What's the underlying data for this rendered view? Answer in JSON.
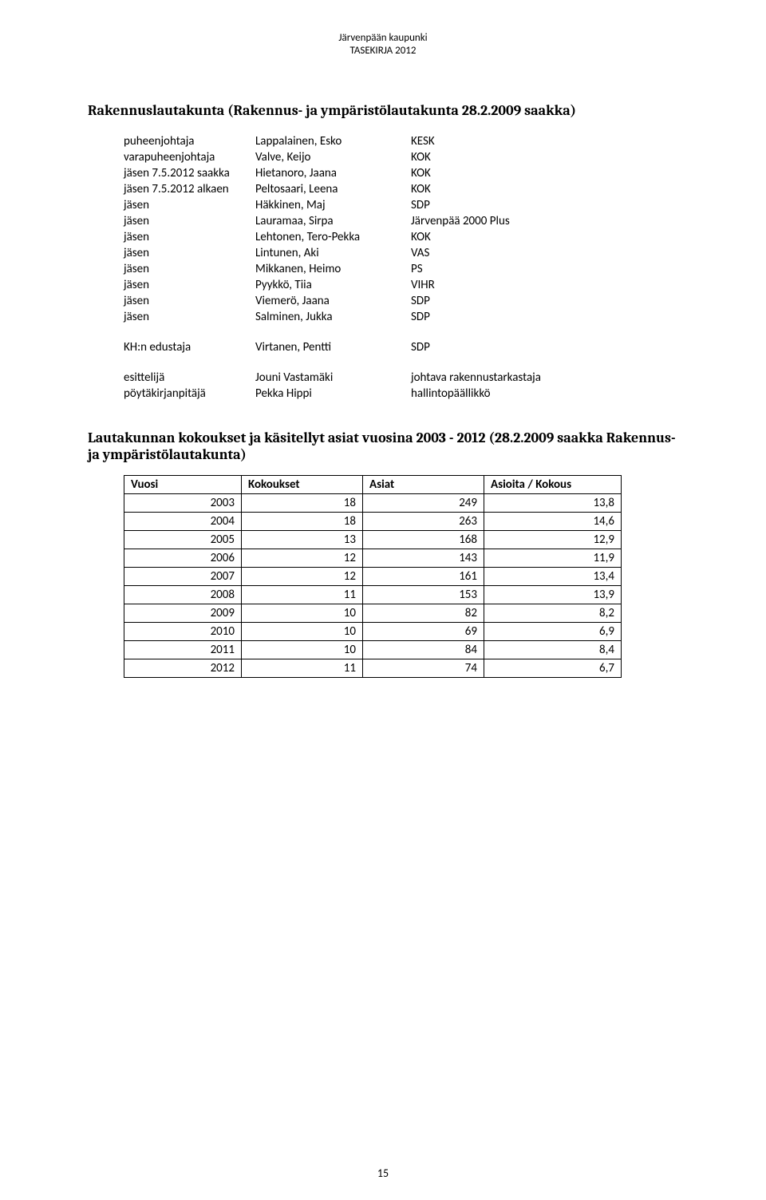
{
  "header": {
    "line1": "Järvenpään kaupunki",
    "line2": "TASEKIRJA 2012"
  },
  "section_title": "Rakennuslautakunta (Rakennus- ja ympäristölautakunta 28.2.2009 saakka)",
  "members": [
    {
      "role": "puheenjohtaja",
      "name": "Lappalainen, Esko",
      "party": "KESK"
    },
    {
      "role": "varapuheenjohtaja",
      "name": "Valve, Keijo",
      "party": "KOK"
    },
    {
      "role": "jäsen 7.5.2012 saakka",
      "name": "Hietanoro, Jaana",
      "party": "KOK"
    },
    {
      "role": "jäsen 7.5.2012 alkaen",
      "name": "Peltosaari, Leena",
      "party": "KOK"
    },
    {
      "role": "jäsen",
      "name": "Häkkinen, Maj",
      "party": "SDP"
    },
    {
      "role": "jäsen",
      "name": "Lauramaa, Sirpa",
      "party": "Järvenpää 2000 Plus"
    },
    {
      "role": "jäsen",
      "name": "Lehtonen, Tero-Pekka",
      "party": "KOK"
    },
    {
      "role": "jäsen",
      "name": "Lintunen, Aki",
      "party": "VAS"
    },
    {
      "role": "jäsen",
      "name": "Mikkanen, Heimo",
      "party": "PS"
    },
    {
      "role": "jäsen",
      "name": "Pyykkö, Tiia",
      "party": "VIHR"
    },
    {
      "role": "jäsen",
      "name": "Viemerö, Jaana",
      "party": "SDP"
    },
    {
      "role": "jäsen",
      "name": "Salminen, Jukka",
      "party": "SDP"
    }
  ],
  "rep": {
    "role": "KH:n edustaja",
    "name": "Virtanen, Pentti",
    "party": "SDP"
  },
  "officials": [
    {
      "role": "esittelijä",
      "name": "Jouni Vastamäki",
      "title": "johtava rakennustarkastaja"
    },
    {
      "role": "pöytäkirjanpitäjä",
      "name": "Pekka Hippi",
      "title": "hallintopäällikkö"
    }
  ],
  "sub_title": "Lautakunnan kokoukset ja käsitellyt asiat vuosina 2003 - 2012 (28.2.2009 saakka Rakennus- ja ympäristölautakunta)",
  "table": {
    "type": "table",
    "columns": [
      "Vuosi",
      "Kokoukset",
      "Asiat",
      "Asioita / Kokous"
    ],
    "col_align": [
      "left",
      "right",
      "right",
      "right"
    ],
    "rows": [
      [
        "2003",
        "18",
        "249",
        "13,8"
      ],
      [
        "2004",
        "18",
        "263",
        "14,6"
      ],
      [
        "2005",
        "13",
        "168",
        "12,9"
      ],
      [
        "2006",
        "12",
        "143",
        "11,9"
      ],
      [
        "2007",
        "12",
        "161",
        "13,4"
      ],
      [
        "2008",
        "11",
        "153",
        "13,9"
      ],
      [
        "2009",
        "10",
        "82",
        "8,2"
      ],
      [
        "2010",
        "10",
        "69",
        "6,9"
      ],
      [
        "2011",
        "10",
        "84",
        "8,4"
      ],
      [
        "2012",
        "11",
        "74",
        "6,7"
      ]
    ],
    "border_color": "#000000",
    "background_color": "#ffffff",
    "font_size": 15
  },
  "page_number": "15"
}
